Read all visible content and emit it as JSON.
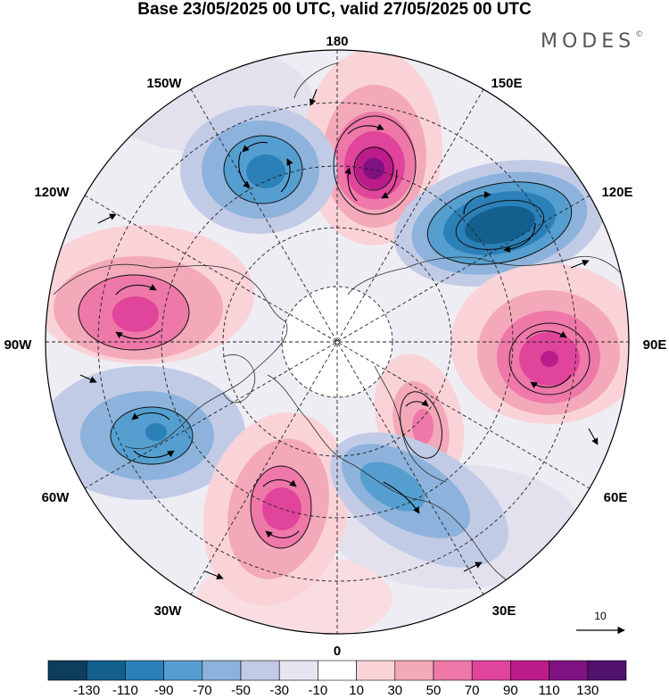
{
  "title": "Base 23/05/2025 00 UTC, valid 27/05/2025 00 UTC",
  "brand": "MODES",
  "brand_mark": "©",
  "map": {
    "projection": "north-polar-stereographic",
    "longitude_labels": [
      {
        "id": "180",
        "text": "180"
      },
      {
        "id": "150E",
        "text": "150E"
      },
      {
        "id": "120E",
        "text": "120E"
      },
      {
        "id": "90E",
        "text": "90E"
      },
      {
        "id": "60E",
        "text": "60E"
      },
      {
        "id": "30E",
        "text": "30E"
      },
      {
        "id": "0",
        "text": "0"
      },
      {
        "id": "30W",
        "text": "30W"
      },
      {
        "id": "60W",
        "text": "60W"
      },
      {
        "id": "90W",
        "text": "90W"
      },
      {
        "id": "120W",
        "text": "120W"
      },
      {
        "id": "150W",
        "text": "150W"
      }
    ],
    "vector_reference": {
      "text": "10"
    },
    "anomaly_centers": [
      {
        "id": "positive-170E",
        "sign": "+",
        "value": 110
      },
      {
        "id": "negative-165W",
        "sign": "-",
        "value": -90
      },
      {
        "id": "negative-135E",
        "sign": "-",
        "value": -110
      },
      {
        "id": "positive-100W",
        "sign": "+",
        "value": 70
      },
      {
        "id": "positive-85E",
        "sign": "+",
        "value": 90
      },
      {
        "id": "negative-60W",
        "sign": "-",
        "value": -90
      },
      {
        "id": "positive-50E",
        "sign": "+",
        "value": 50
      },
      {
        "id": "positive-20W",
        "sign": "+",
        "value": 70
      },
      {
        "id": "negative-25E",
        "sign": "-",
        "value": -50
      }
    ]
  },
  "colorbar": {
    "labels": [
      "-130",
      "-110",
      "-90",
      "-70",
      "-50",
      "-30",
      "-10",
      "10",
      "30",
      "50",
      "70",
      "90",
      "110",
      "130"
    ],
    "colors": [
      "#0d3f5c",
      "#135f8e",
      "#2b80b8",
      "#559fd0",
      "#8db3dc",
      "#c2cbe6",
      "#e7e5f1",
      "#ffffff",
      "#f9d3d8",
      "#f4a9bb",
      "#ee78a8",
      "#e0449b",
      "#bc1c8a",
      "#7f1180",
      "#50126e"
    ]
  }
}
